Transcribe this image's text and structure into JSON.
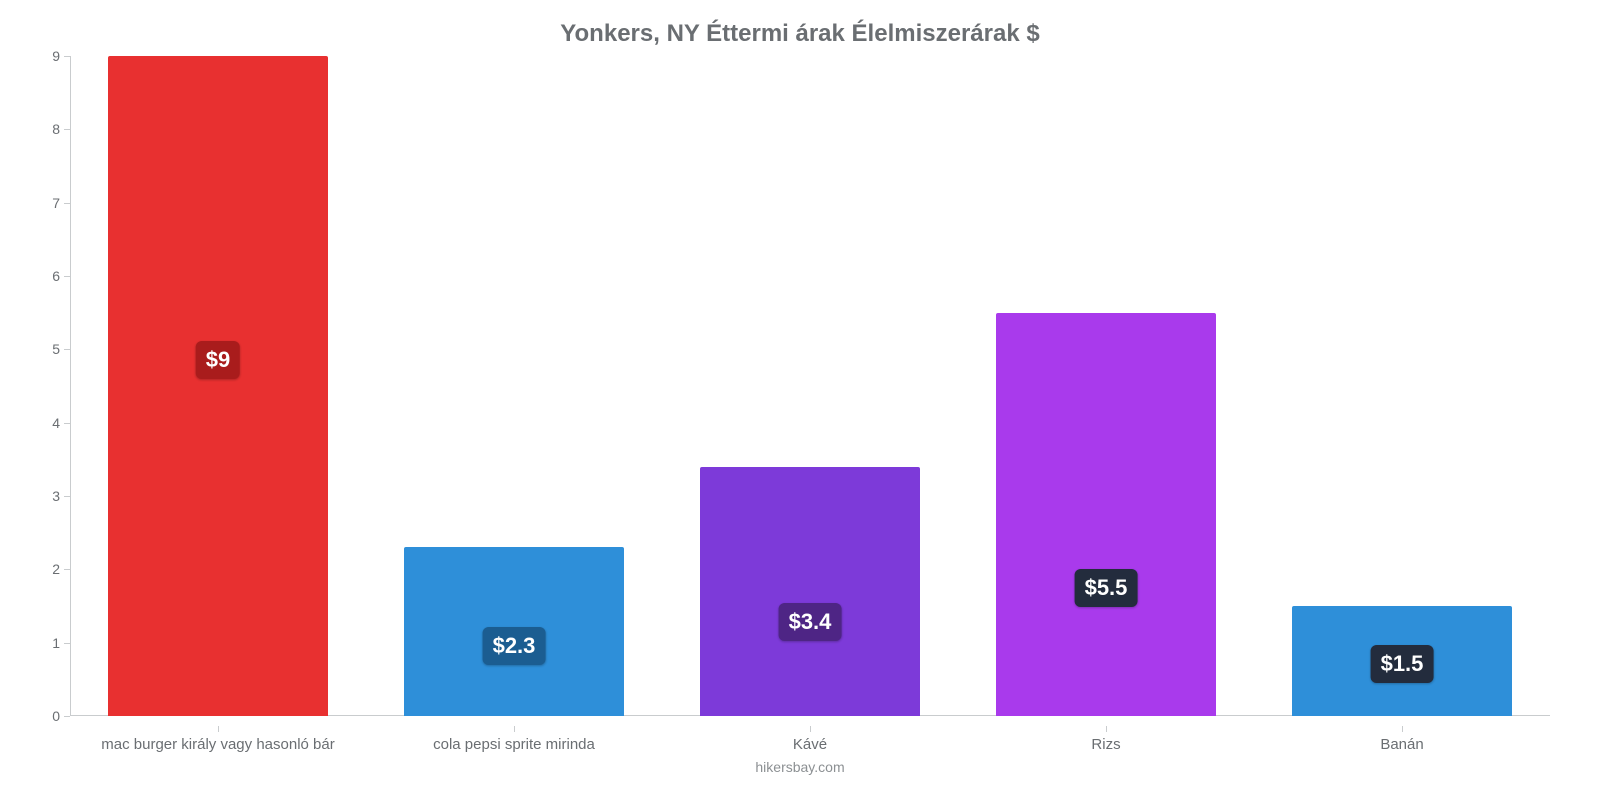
{
  "chart": {
    "type": "bar",
    "title": "Yonkers, NY Éttermi árak Élelmiszerárak $",
    "title_fontsize": 24,
    "title_color": "#6a6e72",
    "footer": "hikersbay.com",
    "footer_color": "#8c9093",
    "footer_fontsize": 14,
    "background_color": "#ffffff",
    "axis_color": "#c9ccce",
    "label_color": "#6a6e72",
    "x_label_fontsize": 15,
    "y_label_fontsize": 14,
    "value_badge_fontsize": 22,
    "ylim": [
      0,
      9
    ],
    "ytick_step": 1,
    "yticks": [
      0,
      1,
      2,
      3,
      4,
      5,
      6,
      7,
      8,
      9
    ],
    "bar_width_pct": 74,
    "categories": [
      "mac burger király vagy hasonló bár",
      "cola pepsi sprite mirinda",
      "Kávé",
      "Rizs",
      "Banán"
    ],
    "values": [
      9,
      2.3,
      3.4,
      5.5,
      1.5
    ],
    "value_labels": [
      "$9",
      "$2.3",
      "$3.4",
      "$5.5",
      "$1.5"
    ],
    "bar_colors": [
      "#e83030",
      "#2e8fd9",
      "#7d3ad9",
      "#a93aec",
      "#2e8fd9"
    ],
    "badge_colors": [
      "#a91c1c",
      "#1b5d91",
      "#4e2585",
      "#232c3d",
      "#232c3d"
    ],
    "badge_bottom_pct": [
      51,
      30,
      30,
      27,
      30
    ]
  }
}
